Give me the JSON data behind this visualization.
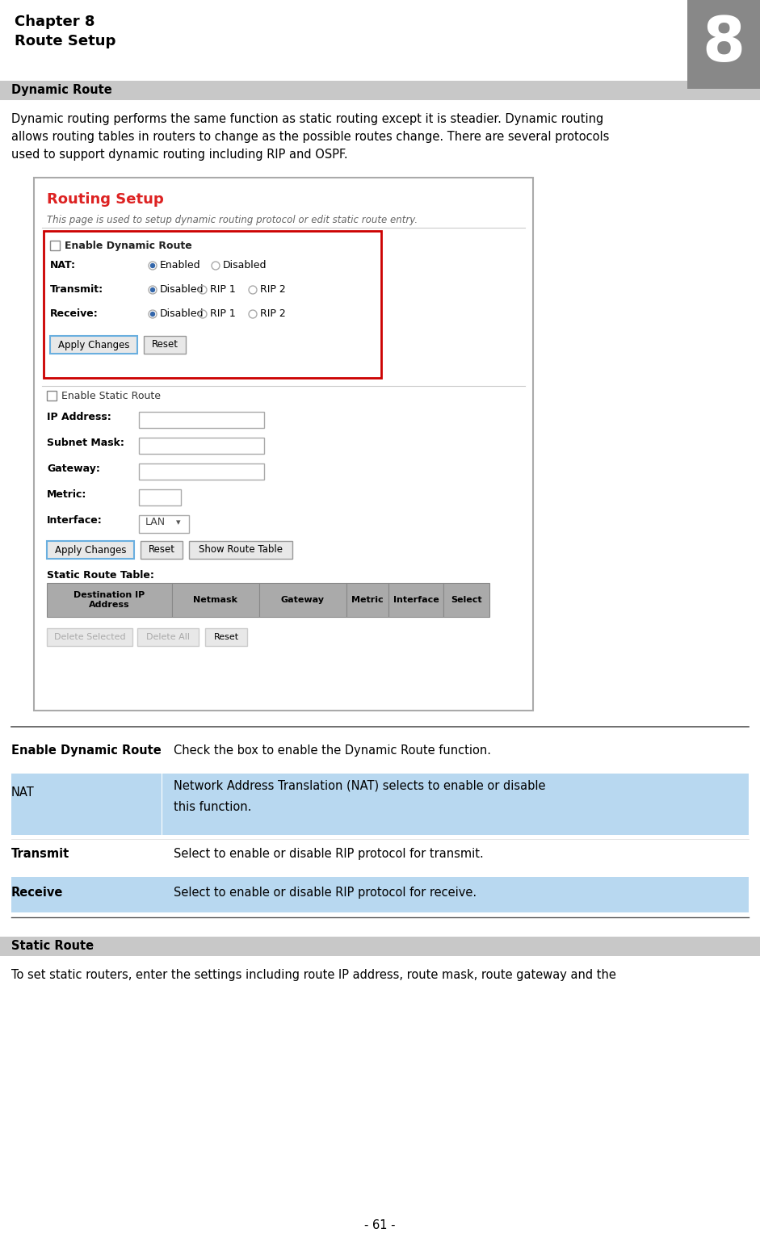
{
  "title_line1": "Chapter 8",
  "title_line2": "Route Setup",
  "chapter_num": "8",
  "section1_header": "Dynamic Route",
  "section1_body_lines": [
    "Dynamic routing performs the same function as static routing except it is steadier. Dynamic routing",
    "allows routing tables in routers to change as the possible routes change. There are several protocols",
    "used to support dynamic routing including RIP and OSPF."
  ],
  "routing_setup_title": "Routing Setup",
  "routing_setup_subtitle": "This page is used to setup dynamic routing protocol or edit static route entry.",
  "enable_dynamic_label": "Enable Dynamic Route",
  "nat_label": "NAT:",
  "nat_options": [
    "Enabled",
    "Disabled"
  ],
  "transmit_label": "Transmit:",
  "transmit_options": [
    "Disabled",
    "RIP 1",
    "RIP 2"
  ],
  "receive_label": "Receive:",
  "receive_options": [
    "Disabled",
    "RIP 1",
    "RIP 2"
  ],
  "btn_apply": "Apply Changes",
  "btn_reset": "Reset",
  "enable_static_label": "Enable Static Route",
  "ip_label": "IP Address:",
  "subnet_label": "Subnet Mask:",
  "gateway_label": "Gateway:",
  "metric_label": "Metric:",
  "interface_label": "Interface:",
  "interface_val": "LAN",
  "btn_show": "Show Route Table",
  "static_table_label": "Static Route Table:",
  "table_headers": [
    "Destination IP\nAddress",
    "Netmask",
    "Gateway",
    "Metric",
    "Interface",
    "Select"
  ],
  "btn_delete_sel": "Delete Selected",
  "btn_delete_all": "Delete All",
  "desc_rows": [
    {
      "label": "Enable Dynamic Route",
      "bold": true,
      "desc": "Check the box to enable the Dynamic Route function.",
      "shaded": false
    },
    {
      "label": "NAT",
      "bold": false,
      "desc": "Network Address Translation (NAT) selects to enable or disable\nthis function.",
      "shaded": true
    },
    {
      "label": "Transmit",
      "bold": true,
      "desc": "Select to enable or disable RIP protocol for transmit.",
      "shaded": false
    },
    {
      "label": "Receive",
      "bold": true,
      "desc": "Select to enable or disable RIP protocol for receive.",
      "shaded": true
    }
  ],
  "section2_header": "Static Route",
  "section2_body": "To set static routers, enter the settings including route IP address, route mask, route gateway and the",
  "page_num": "- 61 -",
  "bg_color": "#ffffff",
  "header_bg": "#c8c8c8",
  "chapter_num_bg": "#888888",
  "blue_row_bg": "#b8d8f0",
  "outer_border": "#aaaaaa",
  "red_border": "#cc0000",
  "button_bg": "#e8e8e8",
  "apply_btn_border": "#6aafdf",
  "table_header_bg": "#aaaaaa"
}
